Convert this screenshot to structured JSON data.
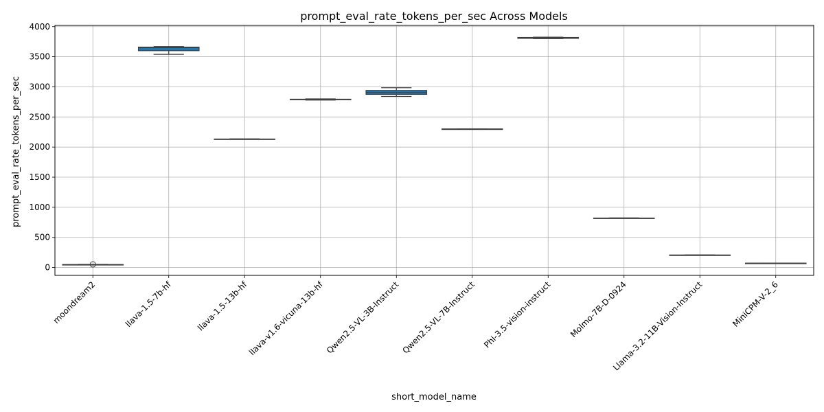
{
  "chart_data": {
    "type": "box",
    "title": "prompt_eval_rate_tokens_per_sec Across Models",
    "xlabel": "short_model_name",
    "ylabel": "prompt_eval_rate_tokens_per_sec",
    "ylim": [
      -130,
      4020
    ],
    "yticks": [
      0,
      500,
      1000,
      1500,
      2000,
      2500,
      3000,
      3500,
      4000
    ],
    "grid": true,
    "box_color": "#1f77b4",
    "categories": [
      "moondream2",
      "llava-1.5-7b-hf",
      "llava-1.5-13b-hf",
      "llava-v1.6-vicuna-13b-hf",
      "Qwen2.5-VL-3B-Instruct",
      "Qwen2.5-VL-7B-Instruct",
      "Phi-3.5-vision-instruct",
      "Molmo-7B-D-0924",
      "Llama-3.2-11B-Vision-Instruct",
      "MiniCPM-V-2_6"
    ],
    "boxes": [
      {
        "min": 45,
        "q1": 47,
        "median": 48,
        "q3": 50,
        "max": 52,
        "outliers": [
          52
        ]
      },
      {
        "min": 3540,
        "q1": 3600,
        "median": 3650,
        "q3": 3660,
        "max": 3670,
        "outliers": []
      },
      {
        "min": 2128,
        "q1": 2130,
        "median": 2132,
        "q3": 2134,
        "max": 2136,
        "outliers": []
      },
      {
        "min": 2780,
        "q1": 2785,
        "median": 2790,
        "q3": 2795,
        "max": 2800,
        "outliers": []
      },
      {
        "min": 2840,
        "q1": 2875,
        "median": 2905,
        "q3": 2940,
        "max": 2985,
        "outliers": []
      },
      {
        "min": 2298,
        "q1": 2299,
        "median": 2300,
        "q3": 2301,
        "max": 2302,
        "outliers": []
      },
      {
        "min": 3800,
        "q1": 3805,
        "median": 3812,
        "q3": 3820,
        "max": 3825,
        "outliers": []
      },
      {
        "min": 819,
        "q1": 820,
        "median": 821,
        "q3": 822,
        "max": 823,
        "outliers": []
      },
      {
        "min": 205,
        "q1": 206,
        "median": 207,
        "q3": 208,
        "max": 209,
        "outliers": []
      },
      {
        "min": 70,
        "q1": 71,
        "median": 72,
        "q3": 73,
        "max": 74,
        "outliers": []
      }
    ]
  }
}
